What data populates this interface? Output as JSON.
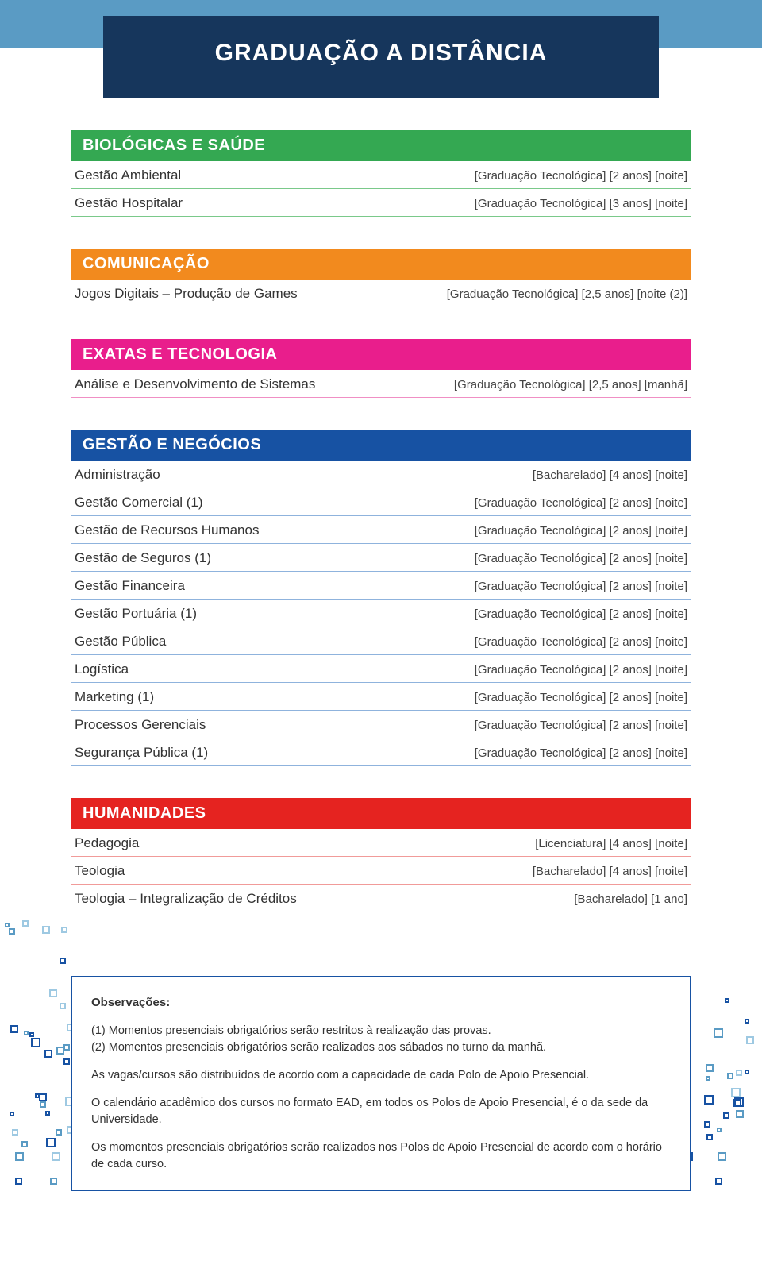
{
  "header": {
    "title": "GRADUAÇÃO A DISTÂNCIA"
  },
  "colors": {
    "top_bar": "#5a9bc4",
    "header_box": "#16365c",
    "obs_border": "#1752a3"
  },
  "sections": [
    {
      "title": "BIOLÓGICAS E SAÚDE",
      "header_bg": "#34a852",
      "row_border": "#7ac98a",
      "courses": [
        {
          "name": "Gestão Ambiental",
          "meta": "[Graduação Tecnológica] [2 anos] [noite]"
        },
        {
          "name": "Gestão Hospitalar",
          "meta": "[Graduação Tecnológica] [3 anos] [noite]"
        }
      ]
    },
    {
      "title": "COMUNICAÇÃO",
      "header_bg": "#f28a1e",
      "row_border": "#f6b879",
      "courses": [
        {
          "name": "Jogos Digitais – Produção de Games",
          "meta": "[Graduação Tecnológica] [2,5 anos] [noite (2)]"
        }
      ]
    },
    {
      "title": "EXATAS E TECNOLOGIA",
      "header_bg": "#e91e8c",
      "row_border": "#f08fc4",
      "courses": [
        {
          "name": "Análise e Desenvolvimento de Sistemas",
          "meta": "[Graduação Tecnológica] [2,5 anos] [manhã]"
        }
      ]
    },
    {
      "title": "GESTÃO E NEGÓCIOS",
      "header_bg": "#1752a3",
      "row_border": "#8fb3dd",
      "courses": [
        {
          "name": "Administração",
          "meta": "[Bacharelado] [4 anos] [noite]"
        },
        {
          "name": "Gestão Comercial (1)",
          "meta": "[Graduação Tecnológica] [2 anos] [noite]"
        },
        {
          "name": "Gestão de Recursos Humanos",
          "meta": "[Graduação Tecnológica] [2 anos] [noite]"
        },
        {
          "name": "Gestão de Seguros (1)",
          "meta": "[Graduação Tecnológica] [2 anos] [noite]"
        },
        {
          "name": "Gestão Financeira",
          "meta": "[Graduação Tecnológica] [2 anos] [noite]"
        },
        {
          "name": "Gestão Portuária (1)",
          "meta": "[Graduação Tecnológica] [2 anos] [noite]"
        },
        {
          "name": "Gestão Pública",
          "meta": "[Graduação Tecnológica] [2 anos] [noite]"
        },
        {
          "name": "Logística",
          "meta": "[Graduação Tecnológica] [2 anos] [noite]"
        },
        {
          "name": "Marketing (1)",
          "meta": "[Graduação Tecnológica] [2 anos] [noite]"
        },
        {
          "name": "Processos Gerenciais",
          "meta": "[Graduação Tecnológica] [2 anos] [noite]"
        },
        {
          "name": "Segurança Pública (1)",
          "meta": "[Graduação Tecnológica] [2 anos] [noite]"
        }
      ]
    },
    {
      "title": "HUMANIDADES",
      "header_bg": "#e52320",
      "row_border": "#f19b99",
      "courses": [
        {
          "name": "Pedagogia",
          "meta": "[Licenciatura] [4 anos] [noite]"
        },
        {
          "name": "Teologia",
          "meta": "[Bacharelado] [4 anos] [noite]"
        },
        {
          "name": "Teologia – Integralização de Créditos",
          "meta": "[Bacharelado] [1 ano]"
        }
      ]
    }
  ],
  "observations": {
    "title": "Observações:",
    "paragraphs": [
      "(1) Momentos presenciais obrigatórios serão restritos à realização das provas.\n(2) Momentos presenciais obrigatórios serão realizados aos sábados no turno da manhã.",
      "As vagas/cursos são distribuídos de acordo com a capacidade de cada Polo de Apoio Presencial.",
      "O calendário acadêmico dos cursos no formato EAD, em todos os Polos de Apoio Presencial, é o da sede da Universidade.",
      "Os momentos presenciais obrigatórios serão realizados nos Polos de Apoio Presencial de acordo com o horário de cada curso."
    ]
  },
  "decor": {
    "colors": [
      "#1752a3",
      "#5a9bc4",
      "#9ec9e2"
    ],
    "sizes": [
      6,
      8,
      10,
      12
    ]
  }
}
